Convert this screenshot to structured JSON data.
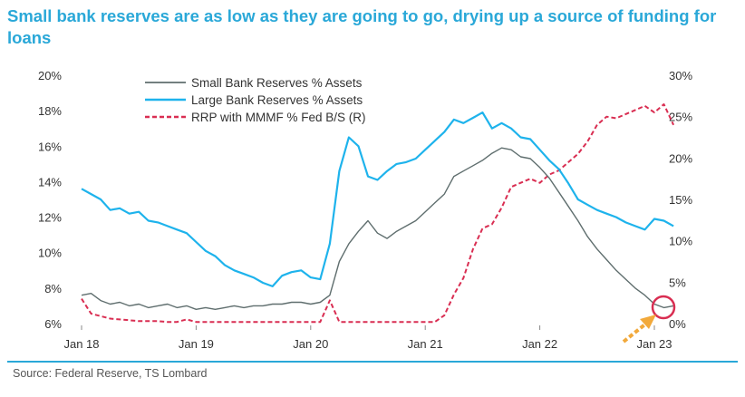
{
  "title": "Small bank reserves are as low as they are going to go, drying up a source of funding for loans",
  "source": "Source: Federal Reserve, TS Lombard",
  "colors": {
    "title": "#2aa8d8",
    "rule": "#2aa8d8",
    "small_bank": "#5f6e6e",
    "large_bank": "#1eb3ec",
    "rrp": "#d92e52",
    "highlight_circle": "#d92e52",
    "arrow": "#f2a93b"
  },
  "chart_data": {
    "type": "line",
    "x_ticks": [
      "Jan 18",
      "Jan 19",
      "Jan 20",
      "Jan 21",
      "Jan 22",
      "Jan 23"
    ],
    "y_left_ticks": [
      "20%",
      "18%",
      "16%",
      "14%",
      "12%",
      "10%",
      "8%",
      "6%"
    ],
    "y_right_ticks": [
      "30%",
      "25%",
      "20%",
      "15%",
      "10%",
      "5%",
      "0%"
    ],
    "y_left_range": [
      6,
      20
    ],
    "y_right_range": [
      0,
      30
    ],
    "legend_position": "top-left",
    "annotation": "circle and arrow highlighting the latest small bank reserves value (Jan 23)",
    "series": [
      {
        "name": "Small Bank Reserves % Assets",
        "axis": "left",
        "style": "solid",
        "points": [
          [
            "2018-01",
            7.6
          ],
          [
            "2018-02",
            7.7
          ],
          [
            "2018-03",
            7.3
          ],
          [
            "2018-04",
            7.1
          ],
          [
            "2018-05",
            7.2
          ],
          [
            "2018-06",
            7.0
          ],
          [
            "2018-07",
            7.1
          ],
          [
            "2018-08",
            6.9
          ],
          [
            "2018-09",
            7.0
          ],
          [
            "2018-10",
            7.1
          ],
          [
            "2018-11",
            6.9
          ],
          [
            "2018-12",
            7.0
          ],
          [
            "2019-01",
            6.8
          ],
          [
            "2019-02",
            6.9
          ],
          [
            "2019-03",
            6.8
          ],
          [
            "2019-04",
            6.9
          ],
          [
            "2019-05",
            7.0
          ],
          [
            "2019-06",
            6.9
          ],
          [
            "2019-07",
            7.0
          ],
          [
            "2019-08",
            7.0
          ],
          [
            "2019-09",
            7.1
          ],
          [
            "2019-10",
            7.1
          ],
          [
            "2019-11",
            7.2
          ],
          [
            "2019-12",
            7.2
          ],
          [
            "2020-01",
            7.1
          ],
          [
            "2020-02",
            7.2
          ],
          [
            "2020-03",
            7.6
          ],
          [
            "2020-04",
            9.5
          ],
          [
            "2020-05",
            10.5
          ],
          [
            "2020-06",
            11.2
          ],
          [
            "2020-07",
            11.8
          ],
          [
            "2020-08",
            11.1
          ],
          [
            "2020-09",
            10.8
          ],
          [
            "2020-10",
            11.2
          ],
          [
            "2020-11",
            11.5
          ],
          [
            "2020-12",
            11.8
          ],
          [
            "2021-01",
            12.3
          ],
          [
            "2021-02",
            12.8
          ],
          [
            "2021-03",
            13.3
          ],
          [
            "2021-04",
            14.3
          ],
          [
            "2021-05",
            14.6
          ],
          [
            "2021-06",
            14.9
          ],
          [
            "2021-07",
            15.2
          ],
          [
            "2021-08",
            15.6
          ],
          [
            "2021-09",
            15.9
          ],
          [
            "2021-10",
            15.8
          ],
          [
            "2021-11",
            15.4
          ],
          [
            "2021-12",
            15.3
          ],
          [
            "2022-01",
            14.8
          ],
          [
            "2022-02",
            14.2
          ],
          [
            "2022-03",
            13.4
          ],
          [
            "2022-04",
            12.6
          ],
          [
            "2022-05",
            11.8
          ],
          [
            "2022-06",
            10.9
          ],
          [
            "2022-07",
            10.2
          ],
          [
            "2022-08",
            9.6
          ],
          [
            "2022-09",
            9.0
          ],
          [
            "2022-10",
            8.5
          ],
          [
            "2022-11",
            8.0
          ],
          [
            "2022-12",
            7.6
          ],
          [
            "2023-01",
            7.1
          ],
          [
            "2023-02",
            6.9
          ],
          [
            "2023-03",
            7.0
          ]
        ]
      },
      {
        "name": "Large Bank Reserves % Assets",
        "axis": "left",
        "style": "solid",
        "points": [
          [
            "2018-01",
            13.6
          ],
          [
            "2018-02",
            13.3
          ],
          [
            "2018-03",
            13.0
          ],
          [
            "2018-04",
            12.4
          ],
          [
            "2018-05",
            12.5
          ],
          [
            "2018-06",
            12.2
          ],
          [
            "2018-07",
            12.3
          ],
          [
            "2018-08",
            11.8
          ],
          [
            "2018-09",
            11.7
          ],
          [
            "2018-10",
            11.5
          ],
          [
            "2018-11",
            11.3
          ],
          [
            "2018-12",
            11.1
          ],
          [
            "2019-01",
            10.6
          ],
          [
            "2019-02",
            10.1
          ],
          [
            "2019-03",
            9.8
          ],
          [
            "2019-04",
            9.3
          ],
          [
            "2019-05",
            9.0
          ],
          [
            "2019-06",
            8.8
          ],
          [
            "2019-07",
            8.6
          ],
          [
            "2019-08",
            8.3
          ],
          [
            "2019-09",
            8.1
          ],
          [
            "2019-10",
            8.7
          ],
          [
            "2019-11",
            8.9
          ],
          [
            "2019-12",
            9.0
          ],
          [
            "2020-01",
            8.6
          ],
          [
            "2020-02",
            8.5
          ],
          [
            "2020-03",
            10.5
          ],
          [
            "2020-04",
            14.6
          ],
          [
            "2020-05",
            16.5
          ],
          [
            "2020-06",
            16.0
          ],
          [
            "2020-07",
            14.3
          ],
          [
            "2020-08",
            14.1
          ],
          [
            "2020-09",
            14.6
          ],
          [
            "2020-10",
            15.0
          ],
          [
            "2020-11",
            15.1
          ],
          [
            "2020-12",
            15.3
          ],
          [
            "2021-01",
            15.8
          ],
          [
            "2021-02",
            16.3
          ],
          [
            "2021-03",
            16.8
          ],
          [
            "2021-04",
            17.5
          ],
          [
            "2021-05",
            17.3
          ],
          [
            "2021-06",
            17.6
          ],
          [
            "2021-07",
            17.9
          ],
          [
            "2021-08",
            17.0
          ],
          [
            "2021-09",
            17.3
          ],
          [
            "2021-10",
            17.0
          ],
          [
            "2021-11",
            16.5
          ],
          [
            "2021-12",
            16.4
          ],
          [
            "2022-01",
            15.8
          ],
          [
            "2022-02",
            15.2
          ],
          [
            "2022-03",
            14.7
          ],
          [
            "2022-04",
            13.9
          ],
          [
            "2022-05",
            13.0
          ],
          [
            "2022-06",
            12.7
          ],
          [
            "2022-07",
            12.4
          ],
          [
            "2022-08",
            12.2
          ],
          [
            "2022-09",
            12.0
          ],
          [
            "2022-10",
            11.7
          ],
          [
            "2022-11",
            11.5
          ],
          [
            "2022-12",
            11.3
          ],
          [
            "2023-01",
            11.9
          ],
          [
            "2023-02",
            11.8
          ],
          [
            "2023-03",
            11.5
          ]
        ]
      },
      {
        "name": "RRP with MMMF % Fed B/S (R)",
        "axis": "right",
        "style": "dashed",
        "points": [
          [
            "2018-01",
            3.0
          ],
          [
            "2018-02",
            1.2
          ],
          [
            "2018-03",
            0.9
          ],
          [
            "2018-04",
            0.6
          ],
          [
            "2018-05",
            0.5
          ],
          [
            "2018-06",
            0.4
          ],
          [
            "2018-07",
            0.3
          ],
          [
            "2018-08",
            0.3
          ],
          [
            "2018-09",
            0.3
          ],
          [
            "2018-10",
            0.2
          ],
          [
            "2018-11",
            0.2
          ],
          [
            "2018-12",
            0.5
          ],
          [
            "2019-01",
            0.2
          ],
          [
            "2019-02",
            0.2
          ],
          [
            "2019-03",
            0.2
          ],
          [
            "2019-04",
            0.2
          ],
          [
            "2019-05",
            0.2
          ],
          [
            "2019-06",
            0.2
          ],
          [
            "2019-07",
            0.2
          ],
          [
            "2019-08",
            0.2
          ],
          [
            "2019-09",
            0.2
          ],
          [
            "2019-10",
            0.2
          ],
          [
            "2019-11",
            0.2
          ],
          [
            "2019-12",
            0.2
          ],
          [
            "2020-01",
            0.2
          ],
          [
            "2020-02",
            0.2
          ],
          [
            "2020-03",
            2.8
          ],
          [
            "2020-04",
            0.2
          ],
          [
            "2020-05",
            0.2
          ],
          [
            "2020-06",
            0.2
          ],
          [
            "2020-07",
            0.2
          ],
          [
            "2020-08",
            0.2
          ],
          [
            "2020-09",
            0.2
          ],
          [
            "2020-10",
            0.2
          ],
          [
            "2020-11",
            0.2
          ],
          [
            "2020-12",
            0.2
          ],
          [
            "2021-01",
            0.2
          ],
          [
            "2021-02",
            0.2
          ],
          [
            "2021-03",
            1.0
          ],
          [
            "2021-04",
            3.5
          ],
          [
            "2021-05",
            5.5
          ],
          [
            "2021-06",
            9.0
          ],
          [
            "2021-07",
            11.5
          ],
          [
            "2021-08",
            12.0
          ],
          [
            "2021-09",
            14.0
          ],
          [
            "2021-10",
            16.5
          ],
          [
            "2021-11",
            17.0
          ],
          [
            "2021-12",
            17.5
          ],
          [
            "2022-01",
            17.0
          ],
          [
            "2022-02",
            18.0
          ],
          [
            "2022-03",
            18.5
          ],
          [
            "2022-04",
            19.5
          ],
          [
            "2022-05",
            20.5
          ],
          [
            "2022-06",
            22.0
          ],
          [
            "2022-07",
            24.0
          ],
          [
            "2022-08",
            25.0
          ],
          [
            "2022-09",
            24.8
          ],
          [
            "2022-10",
            25.3
          ],
          [
            "2022-11",
            25.8
          ],
          [
            "2022-12",
            26.3
          ],
          [
            "2023-01",
            25.5
          ],
          [
            "2023-02",
            26.5
          ],
          [
            "2023-03",
            24.0
          ]
        ]
      }
    ]
  }
}
